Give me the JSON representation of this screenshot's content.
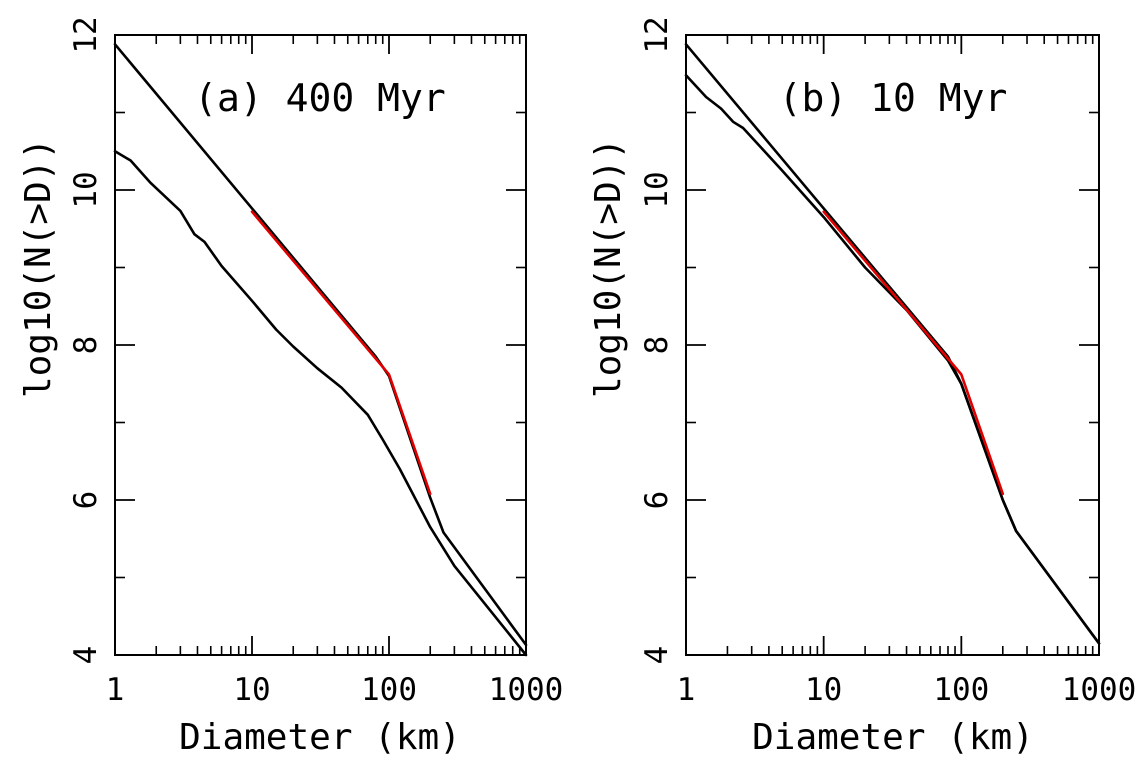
{
  "figure": {
    "panels": [
      {
        "label": "(a) 400 Myr"
      },
      {
        "label": "(b) 10 Myr"
      }
    ]
  },
  "colors": {
    "axes": "#000000",
    "model": "#000000",
    "fit": "#e00000"
  },
  "chart_data": [
    {
      "type": "line",
      "title": "(a) 400 Myr",
      "xlabel": "Diameter (km)",
      "ylabel": "log10(N(>D))",
      "xscale": "log",
      "xlim": [
        1,
        1000
      ],
      "ylim": [
        4,
        12
      ],
      "x_ticks": [
        1,
        10,
        100,
        1000
      ],
      "x_tick_labels": [
        "1",
        "10",
        "100",
        "1000"
      ],
      "y_ticks": [
        4,
        6,
        8,
        10,
        12
      ],
      "y_tick_labels": [
        "4",
        "6",
        "8",
        "10",
        "12"
      ],
      "grid": false,
      "series": [
        {
          "color": "#000000",
          "x": [
            1,
            80,
            100,
            200,
            250,
            1000
          ],
          "y": [
            11.88,
            7.85,
            7.6,
            6.03,
            5.58,
            4.13
          ]
        },
        {
          "color": "#000000",
          "x": [
            1,
            1.3,
            1.8,
            3,
            3.8,
            4.5,
            6,
            10,
            15,
            20,
            30,
            45,
            70,
            90,
            120,
            200,
            300,
            1000
          ],
          "y": [
            10.5,
            10.38,
            10.1,
            9.73,
            9.43,
            9.33,
            9.02,
            8.57,
            8.2,
            7.98,
            7.7,
            7.45,
            7.1,
            6.78,
            6.4,
            5.65,
            5.15,
            4.0
          ]
        },
        {
          "color": "#e00000",
          "x": [
            10,
            100,
            200
          ],
          "y": [
            9.72,
            7.62,
            6.08
          ]
        }
      ]
    },
    {
      "type": "line",
      "title": "(b) 10 Myr",
      "xlabel": "Diameter (km)",
      "ylabel": "log10(N(>D))",
      "xscale": "log",
      "xlim": [
        1,
        1000
      ],
      "ylim": [
        4,
        12
      ],
      "x_ticks": [
        1,
        10,
        100,
        1000
      ],
      "x_tick_labels": [
        "1",
        "10",
        "100",
        "1000"
      ],
      "y_ticks": [
        4,
        6,
        8,
        10,
        12
      ],
      "y_tick_labels": [
        "4",
        "6",
        "8",
        "10",
        "12"
      ],
      "grid": false,
      "series": [
        {
          "color": "#000000",
          "x": [
            1,
            80,
            100,
            200,
            250,
            1000
          ],
          "y": [
            11.88,
            7.85,
            7.5,
            6.0,
            5.6,
            4.15
          ]
        },
        {
          "color": "#000000",
          "x": [
            1,
            1.4,
            1.8,
            2.2,
            2.6,
            3.5,
            5,
            10,
            20,
            40,
            80,
            100,
            200,
            250,
            1000
          ],
          "y": [
            11.48,
            11.2,
            11.05,
            10.88,
            10.8,
            10.55,
            10.25,
            9.65,
            9.0,
            8.45,
            7.8,
            7.5,
            6.0,
            5.6,
            4.15
          ]
        },
        {
          "color": "#e00000",
          "x": [
            10,
            100,
            200
          ],
          "y": [
            9.72,
            7.62,
            6.08
          ]
        }
      ]
    }
  ]
}
